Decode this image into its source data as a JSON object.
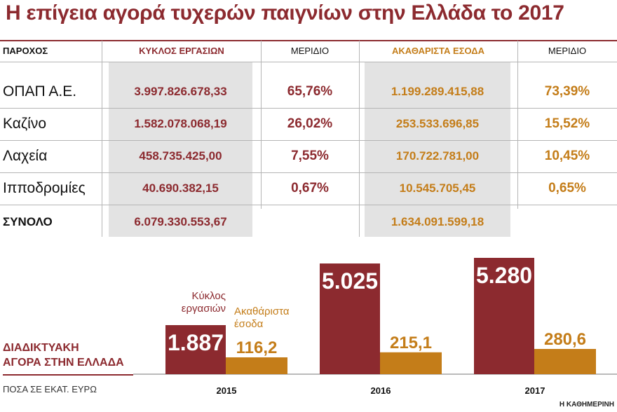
{
  "title": "Η επίγεια αγορά τυχερών παιγνίων στην Ελλάδα το 2017",
  "table": {
    "headers": {
      "provider": "ΠΑΡΟΧΟΣ",
      "turnover": "ΚΥΚΛΟΣ ΕΡΓΑΣΙΩΝ",
      "share1": "ΜΕΡΙΔΙΟ",
      "gross": "ΑΚΑΘΑΡΙΣΤΑ ΕΣΟΔΑ",
      "share2": "ΜΕΡΙΔΙΟ"
    },
    "rows": [
      {
        "name": "ΟΠΑΠ Α.Ε.",
        "turnover": "3.997.826.678,33",
        "share1": "65,76%",
        "gross": "1.199.289.415,88",
        "share2": "73,39%"
      },
      {
        "name": "Καζίνο",
        "turnover": "1.582.078.068,19",
        "share1": "26,02%",
        "gross": "253.533.696,85",
        "share2": "15,52%"
      },
      {
        "name": "Λαχεία",
        "turnover": "458.735.425,00",
        "share1": "7,55%",
        "gross": "170.722.781,00",
        "share2": "10,45%"
      },
      {
        "name": "Ιπποδρομίες",
        "turnover": "40.690.382,15",
        "share1": "0,67%",
        "gross": "10.545.705,45",
        "share2": "0,65%"
      }
    ],
    "total": {
      "name": "ΣΥΝΟΛΟ",
      "turnover": "6.079.330.553,67",
      "gross": "1.634.091.599,18"
    }
  },
  "chart_data": {
    "type": "bar",
    "title": "ΔΙΑΔΙΚΤΥΑΚΗ ΑΓΟΡΑ ΣΤΗΝ ΕΛΛΑΔΑ",
    "subtitle": "ΠΟΣΑ ΣΕ ΕΚΑΤ. ΕΥΡΩ",
    "categories": [
      "2015",
      "2016",
      "2017"
    ],
    "series": [
      {
        "name": "Κύκλος εργασιών",
        "values": [
          1887,
          5025,
          5280
        ],
        "labels": [
          "1.887",
          "5.025",
          "5.280"
        ],
        "color": "#8c2a2f"
      },
      {
        "name": "Ακαθάριστα έσοδα",
        "values": [
          116.2,
          215.1,
          280.6
        ],
        "labels": [
          "116,2",
          "215,1",
          "280,6"
        ],
        "color": "#c47d19"
      }
    ],
    "legend": {
      "series1_line1": "Κύκλος",
      "series1_line2": "εργασιών",
      "series2_line1": "Ακαθάριστα",
      "series2_line2": "έσοδα"
    },
    "title_line1": "ΔΙΑΔΙΚΤΥΑΚΗ",
    "title_line2": "ΑΓΟΡΑ ΣΤΗΝ ΕΛΛΑΔΑ"
  },
  "credit": "Η ΚΑΘΗΜΕΡΙΝΗ",
  "colors": {
    "accent": "#8c2a2f",
    "gold": "#c47d19",
    "shade": "#e3e3e3"
  }
}
